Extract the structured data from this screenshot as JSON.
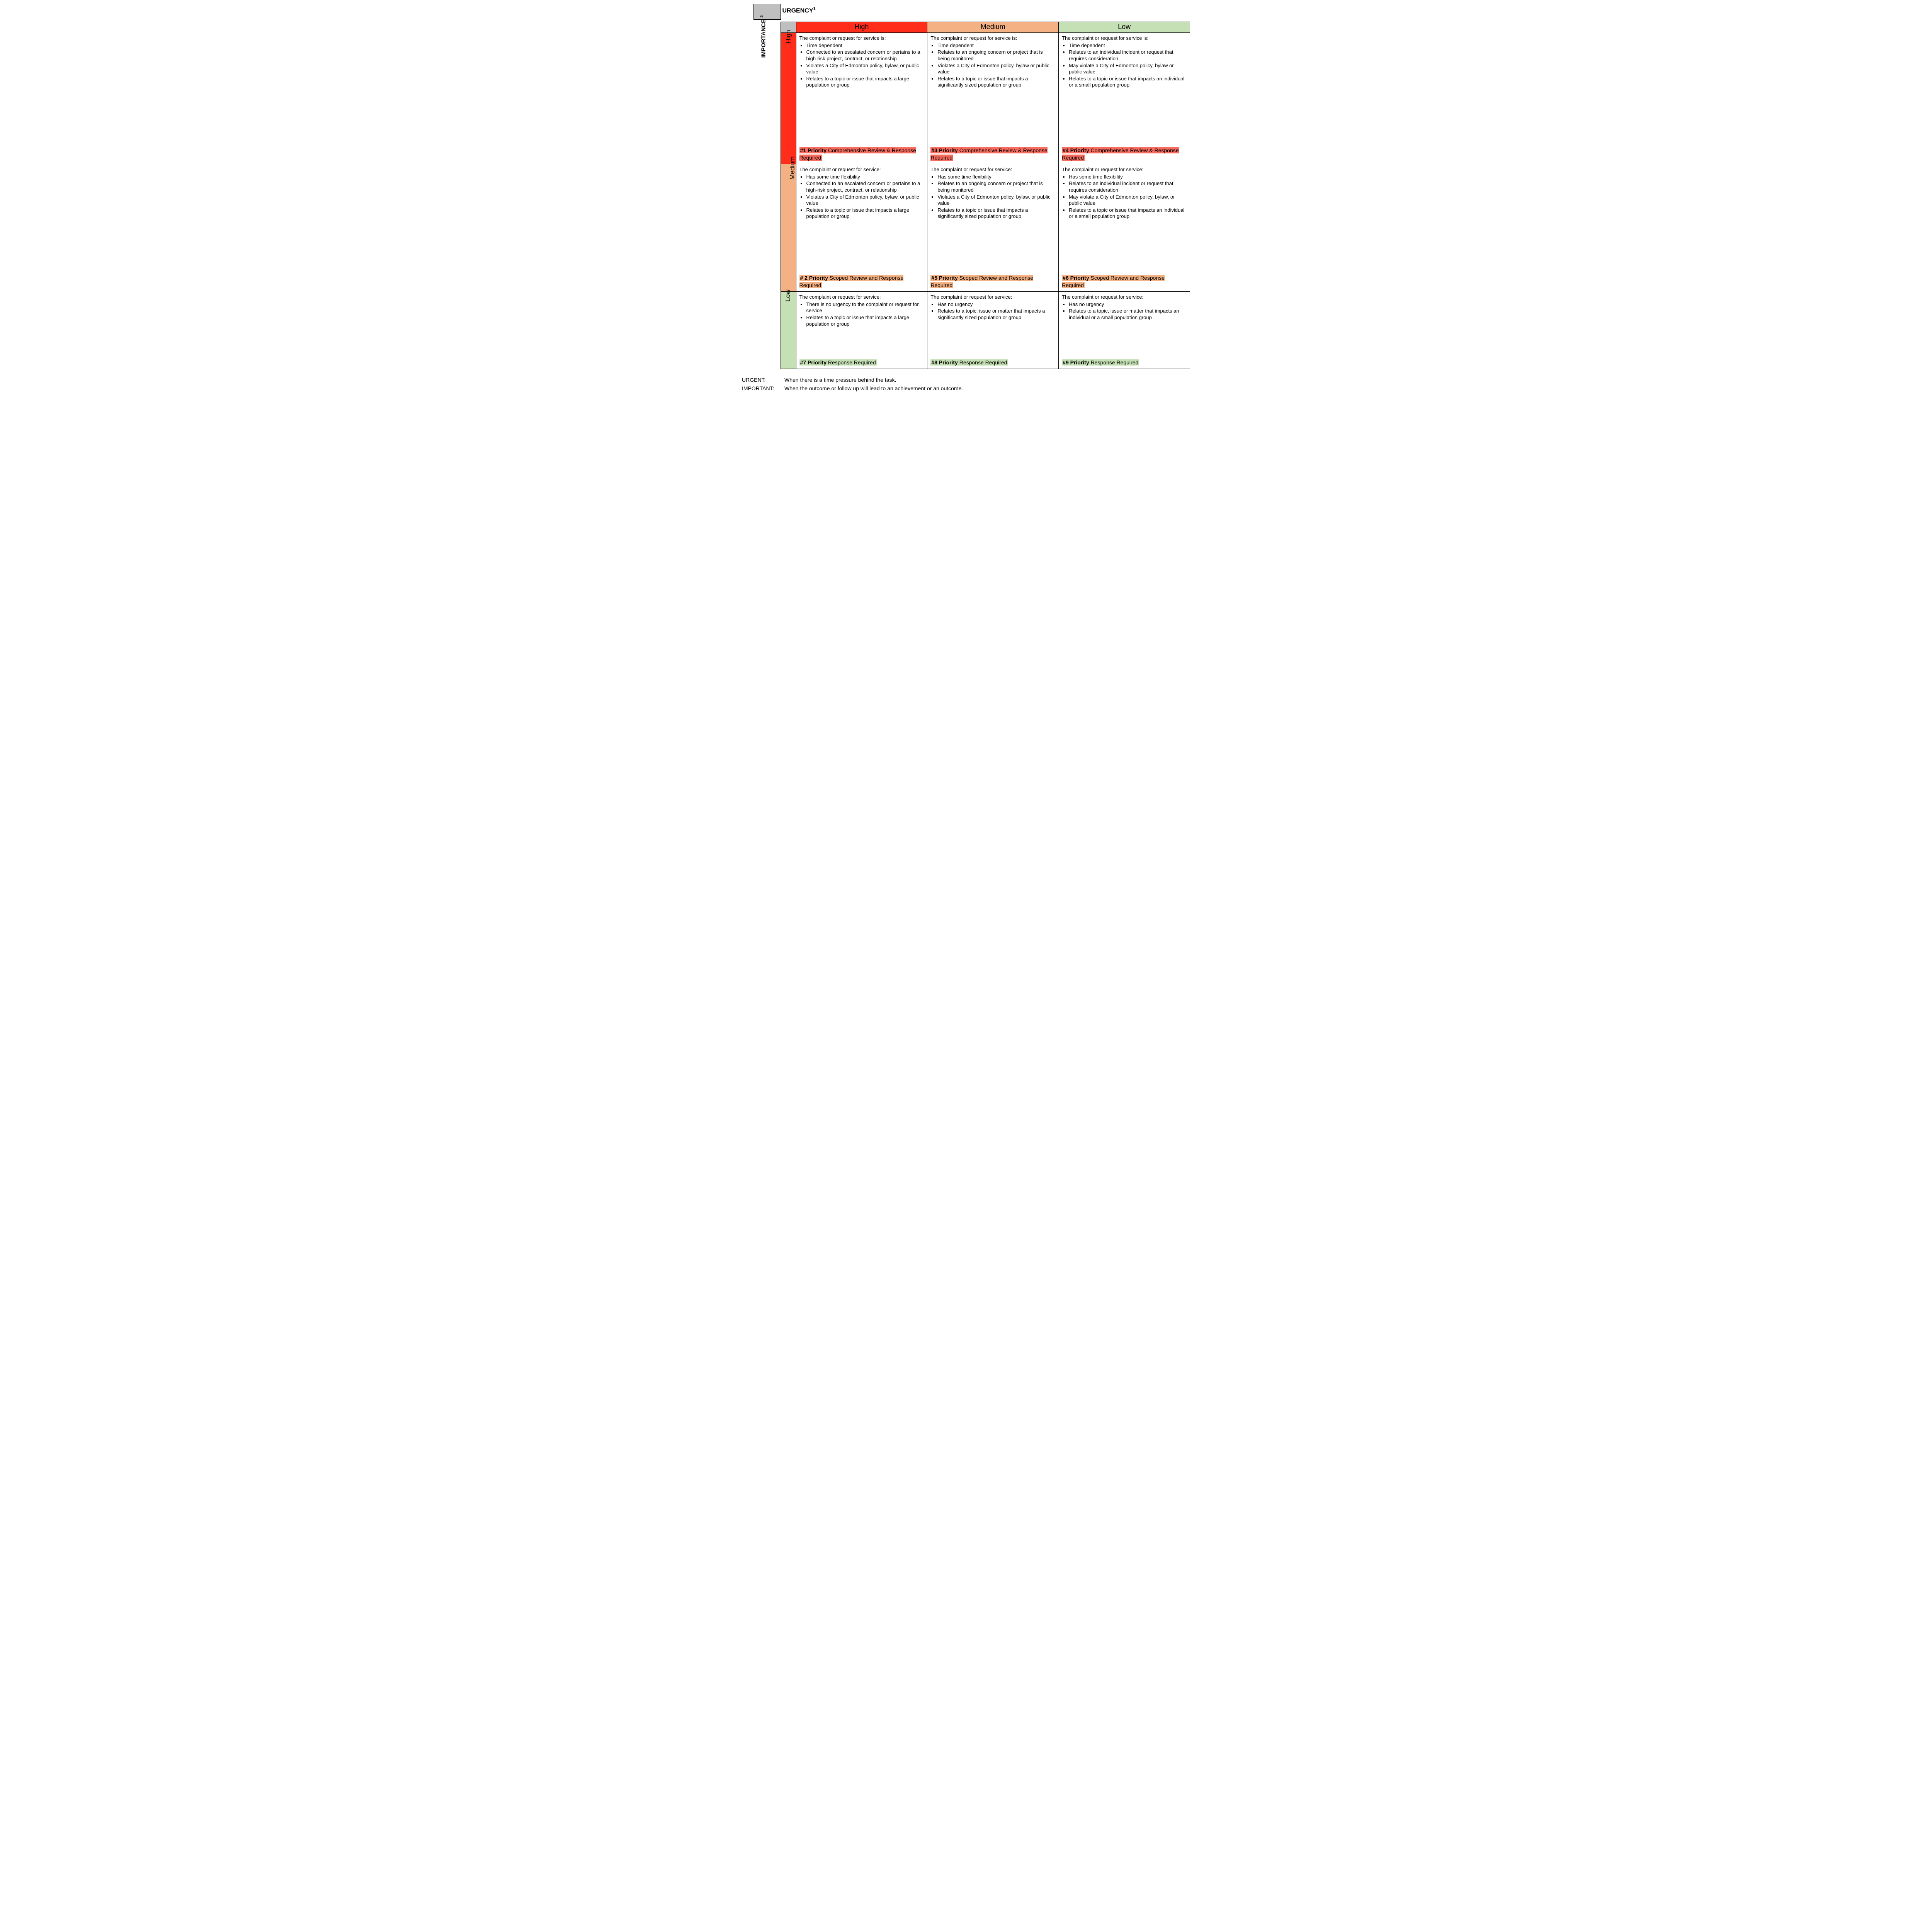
{
  "colors": {
    "high": "#ff2d1a",
    "medium": "#f4b183",
    "low": "#c5e0b4",
    "priority_red": "#f76c5e",
    "priority_orange": "#f4b183",
    "priority_green": "#c5e0b4",
    "corner": "#bfbfbf"
  },
  "axes": {
    "urgency_title": "URGENCY",
    "urgency_sup": "1",
    "importance_title": "IMPORTANCE ",
    "importance_sup": "2",
    "cols": [
      "High",
      "Medium",
      "Low"
    ],
    "rows": [
      "High",
      "Medium",
      "Low"
    ]
  },
  "cells": {
    "hh": {
      "lead": "The complaint or request for service is:",
      "items": [
        "Time dependent",
        "Connected to an escalated concern or pertains to a high-risk project, contract, or relationship",
        "Violates a City of Edmonton policy, bylaw, or public value",
        "Relates to a topic or issue that impacts a large population or group"
      ],
      "priority_label": "#1 Priority",
      "priority_text": " Comprehensive Review & Response Required",
      "priority_class": "pr-red"
    },
    "hm": {
      "lead": "The complaint or request for service is:",
      "items": [
        "Time dependent",
        "Relates to an ongoing concern or project that is being monitored",
        "Violates a City of Edmonton policy, bylaw or public value",
        "Relates to a topic or issue that impacts a significantly sized population or group"
      ],
      "priority_label": "#3 Priority",
      "priority_text": " Comprehensive Review & Response Required",
      "priority_class": "pr-red"
    },
    "hl": {
      "lead": "The complaint or request for service is:",
      "items": [
        "Time dependent",
        "Relates to an individual incident or request that requires consideration",
        "May violate a City of Edmonton policy, bylaw or public value",
        "Relates to a topic or issue that impacts an individual or a small population group"
      ],
      "priority_label": "#4 Priority",
      "priority_text": " Comprehensive Review & Response Required",
      "priority_class": "pr-red"
    },
    "mh": {
      "lead": "The complaint or request for service:",
      "items": [
        "Has some time flexibility",
        "Connected to an escalated concern or pertains to a high-risk project, contract, or relationship",
        "Violates a City of Edmonton policy, bylaw, or public value",
        "Relates to a topic or issue that impacts a large population or group"
      ],
      "priority_label": "# 2 Priority",
      "priority_text": " Scoped Review and Response Required",
      "priority_class": "pr-orange"
    },
    "mm": {
      "lead": "The complaint or request for service:",
      "items": [
        "Has some time flexibility",
        "Relates to an ongoing concern or project that is being monitored",
        "Violates a City of Edmonton policy, bylaw, or public value",
        "Relates to a topic or issue that impacts a significantly sized population or group"
      ],
      "priority_label": "#5 Priority",
      "priority_text": " Scoped Review and Response Required",
      "priority_class": "pr-orange"
    },
    "ml": {
      "lead": "The complaint or request for service:",
      "items": [
        "Has some time flexibility",
        "Relates to an individual incident or request that requires consideration",
        "May violate a City of Edmonton policy, bylaw, or public value",
        "Relates to a topic or issue that impacts an individual or a small population group"
      ],
      "priority_label": "#6 Priority",
      "priority_text": " Scoped Review and Response Required",
      "priority_class": "pr-orange"
    },
    "lh": {
      "lead": "The complaint or request for service:",
      "items": [
        "There is no urgency to the complaint or request for service",
        "Relates to a topic or issue that impacts a large population or group"
      ],
      "priority_label": "#7 Priority",
      "priority_text": " Response Required",
      "priority_class": "pr-green"
    },
    "lm": {
      "lead": "The complaint or request for service:",
      "items": [
        "Has no urgency",
        "Relates to a topic, issue or matter that impacts a significantly sized population or group"
      ],
      "priority_label": "#8 Priority",
      "priority_text": " Response Required",
      "priority_class": "pr-green"
    },
    "ll": {
      "lead": "The complaint or request for service:",
      "items": [
        "Has no urgency",
        "Relates to a topic, issue or matter that impacts an individual or a small population group"
      ],
      "priority_label": "#9 Priority",
      "priority_text": " Response Required",
      "priority_class": "pr-green"
    }
  },
  "footnotes": {
    "urgent_label": "URGENT:",
    "urgent_text": "When there is a time pressure behind the task.",
    "important_label": "IMPORTANT:",
    "important_text": "When the outcome or follow up will lead to an achievement or an outcome."
  }
}
